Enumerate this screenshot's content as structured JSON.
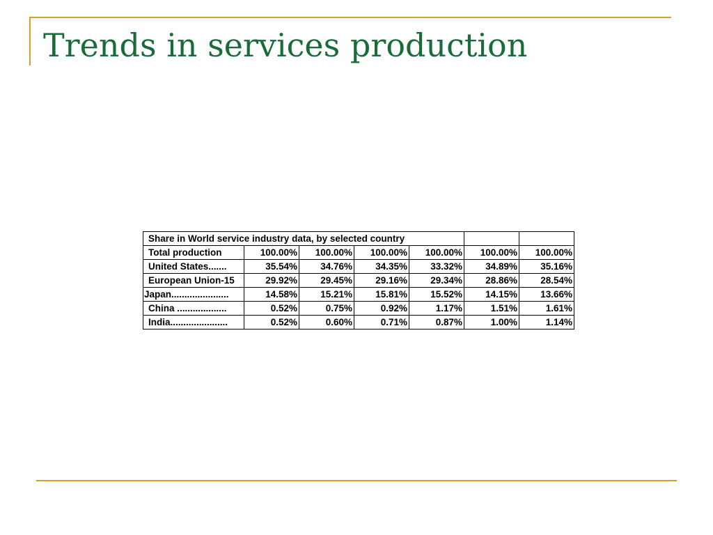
{
  "slide": {
    "title": "Trends in services production"
  },
  "table": {
    "caption": "Share in World service industry data, by selected country",
    "rows": [
      {
        "label": "Total production",
        "values": [
          "100.00%",
          "100.00%",
          "100.00%",
          "100.00%",
          "100.00%",
          "100.00%"
        ]
      },
      {
        "label": "United States.......",
        "values": [
          "35.54%",
          "34.76%",
          "34.35%",
          "33.32%",
          "34.89%",
          "35.16%"
        ]
      },
      {
        "label": "European Union-15",
        "values": [
          "29.92%",
          "29.45%",
          "29.16%",
          "29.34%",
          "28.86%",
          "28.54%"
        ]
      },
      {
        "label": "Japan......................",
        "values": [
          "14.58%",
          "15.21%",
          "15.81%",
          "15.52%",
          "14.15%",
          "13.66%"
        ]
      },
      {
        "label": "China ...................",
        "values": [
          "0.52%",
          "0.75%",
          "0.92%",
          "1.17%",
          "1.51%",
          "1.61%"
        ]
      },
      {
        "label": "India......................",
        "values": [
          "0.52%",
          "0.60%",
          "0.71%",
          "0.87%",
          "1.00%",
          "1.14%"
        ]
      }
    ]
  },
  "colors": {
    "title": "#1a6b3a",
    "frame_line": "#d4a22a"
  }
}
